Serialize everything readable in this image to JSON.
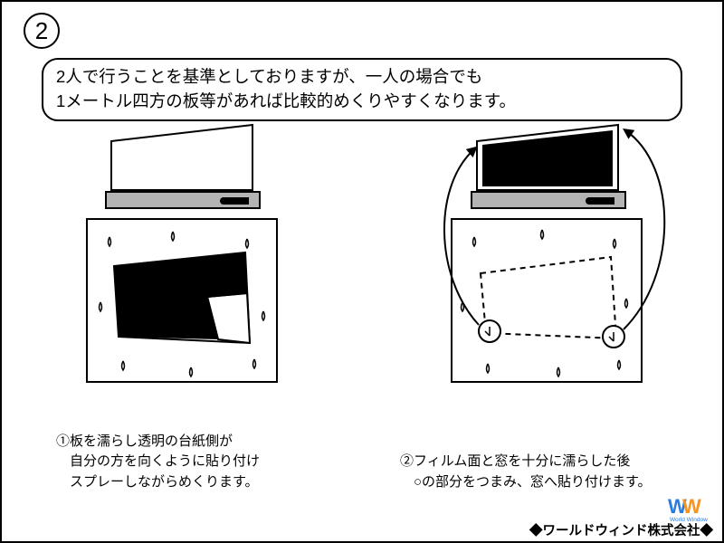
{
  "stepNumber": "2",
  "introLine1": "2人で行うことを基準としておりますが、一人の場合でも",
  "introLine2": "1メートル四方の板等があれば比較的めくりやすくなります。",
  "caption1": "①板を濡らし透明の台紙側が\n　自分の方を向くように貼り付け\n　スプレーしながらめくります。",
  "caption2": "②フィルム面と窓を十分に濡らした後\n　○の部分をつまみ、窓へ貼り付けます。",
  "company": "◆ワールドウィンド株式会社◆",
  "logoText": "World Window",
  "colors": {
    "black": "#000000",
    "gray": "#b4b4b4",
    "blue": "#2a7de1",
    "orange": "#f7931e",
    "white": "#ffffff"
  }
}
